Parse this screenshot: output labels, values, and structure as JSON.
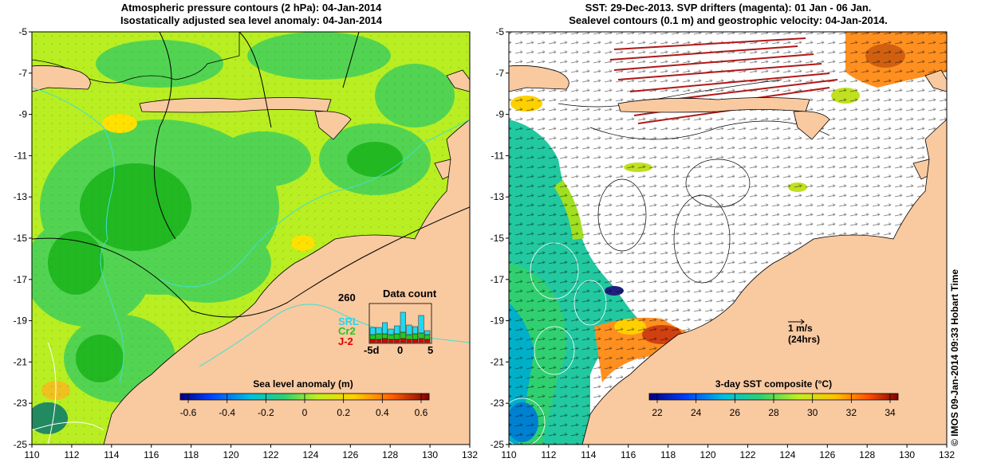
{
  "left_panel": {
    "title_line1": "Atmospheric pressure contours (2 hPa): 04-Jan-2014",
    "title_line2": "Isostatically adjusted sea level anomaly: 04-Jan-2014",
    "colorbar_title": "Sea level anomaly (m)",
    "colorbar_ticks": [
      "-0.6",
      "-0.4",
      "-0.2",
      "0",
      "0.2",
      "0.4",
      "0.6"
    ],
    "inset": {
      "title": "Data count",
      "max_label": "260",
      "missions": [
        {
          "name": "SRL",
          "color": "#22d8f0"
        },
        {
          "name": "Cr2",
          "color": "#22c822"
        },
        {
          "name": "J-2",
          "color": "#e00000"
        }
      ],
      "x_labels": [
        "-5d",
        "0",
        "5"
      ]
    }
  },
  "right_panel": {
    "title_line1": "SST: 29-Dec-2013. SVP drifters (magenta): 01 Jan - 06 Jan.",
    "title_line2": "Sealevel contours (0.1 m) and geostrophic velocity: 04-Jan-2014.",
    "colorbar_title": "3-day SST composite (°C)",
    "colorbar_ticks": [
      "22",
      "24",
      "26",
      "28",
      "30",
      "32",
      "34"
    ],
    "scale_arrow_label1": "1 m/s",
    "scale_arrow_label2": "(24hrs)"
  },
  "axes": {
    "lon_ticks": [
      "110",
      "112",
      "114",
      "116",
      "118",
      "120",
      "122",
      "124",
      "126",
      "128",
      "130",
      "132"
    ],
    "lat_ticks": [
      "-5",
      "-7",
      "-9",
      "-11",
      "-13",
      "-15",
      "-17",
      "-19",
      "-21",
      "-23",
      "-25"
    ]
  },
  "credit": "© IMOS 09-Jan-2014 09:33 Hobart Time",
  "colors": {
    "land": "#f9c9a0",
    "sla_green": "#52d452",
    "sla_yellowgreen": "#b8ee22",
    "sst_white": "#ffffff",
    "sst_cyan_green": "#22c8a0"
  }
}
